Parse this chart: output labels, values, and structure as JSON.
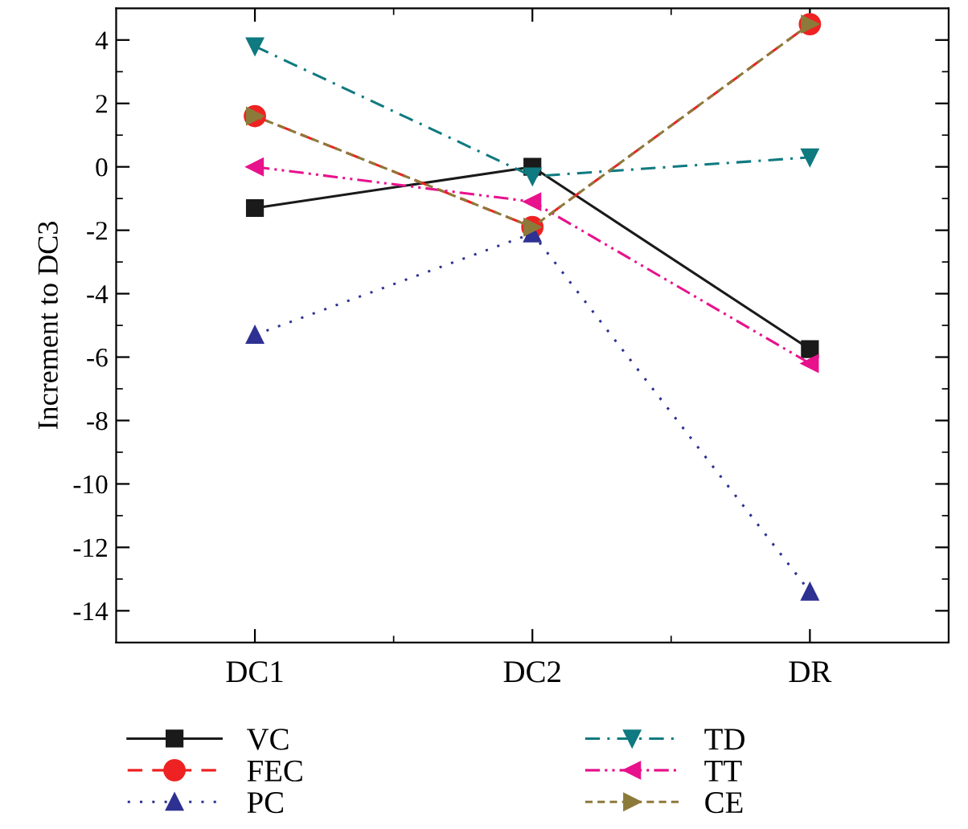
{
  "chart_data": {
    "type": "line",
    "ylabel": "Increment to DC3",
    "categories": [
      "DC1",
      "DC2",
      "DR"
    ],
    "series": [
      {
        "name": "VC",
        "color": "#1a1a1a",
        "values": [
          -1.3,
          0.0,
          -5.75
        ],
        "marker": "square",
        "line_style": "solid"
      },
      {
        "name": "FEC",
        "color": "#ee2222",
        "values": [
          1.6,
          -1.9,
          4.5
        ],
        "marker": "circle",
        "line_style": "dashed"
      },
      {
        "name": "PC",
        "color": "#2e3192",
        "values": [
          -5.3,
          -2.1,
          -13.4
        ],
        "marker": "triangle",
        "line_style": "dotted"
      },
      {
        "name": "TD",
        "color": "#0f7a80",
        "values": [
          3.8,
          -0.3,
          0.3
        ],
        "marker": "triangle_down",
        "line_style": "dashdot"
      },
      {
        "name": "TT",
        "color": "#e8128c",
        "values": [
          0.0,
          -1.1,
          -6.2
        ],
        "marker": "triangle_left",
        "line_style": "dashdotdot"
      },
      {
        "name": "CE",
        "color": "#8c7a3a",
        "values": [
          1.6,
          -1.9,
          4.5
        ],
        "marker": "triangle_right",
        "line_style": "shortdash"
      }
    ],
    "ylim": [
      -15,
      5
    ],
    "yticks": [
      -14,
      -12,
      -10,
      -8,
      -6,
      -4,
      -2,
      0,
      2,
      4
    ],
    "grid": false,
    "legend": "bottom"
  }
}
